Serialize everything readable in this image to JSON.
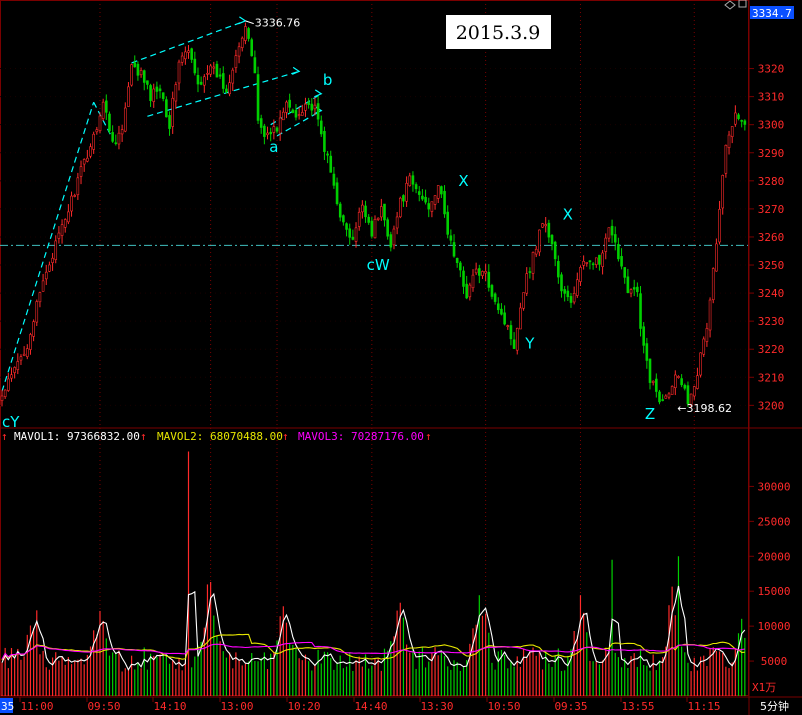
{
  "header": {
    "date_label": "2015.3.9",
    "current_price": "3334.7",
    "top_icons": [
      "diamond-icon",
      "window-icon"
    ]
  },
  "colors": {
    "up": "#ff2a2a",
    "down": "#00d000",
    "mavol1": "#ffffff",
    "mavol2": "#e6e600",
    "mavol3": "#ff00ff",
    "grid": "#7a0000",
    "annotation": "#00ffff",
    "guide": "#40c0c0"
  },
  "chart_data": [
    {
      "type": "candlestick",
      "title": "",
      "interval_label": "5分钟",
      "ylim": [
        3193,
        3343
      ],
      "y_ticks": [
        3200,
        3210,
        3220,
        3230,
        3240,
        3250,
        3260,
        3270,
        3280,
        3290,
        3300,
        3310,
        3320
      ],
      "reference_line": 3257,
      "high_label": "3336.76",
      "low_label": "3198.62",
      "wave_labels": [
        "cY",
        "a",
        "b",
        "cW",
        "X",
        "Y",
        "X",
        "Z"
      ],
      "close_path": [
        [
          0,
          3203
        ],
        [
          8,
          3222
        ],
        [
          14,
          3248
        ],
        [
          19,
          3263
        ],
        [
          24,
          3280
        ],
        [
          29,
          3296
        ],
        [
          32,
          3308
        ],
        [
          35,
          3294
        ],
        [
          38,
          3298
        ],
        [
          41,
          3320
        ],
        [
          44,
          3318
        ],
        [
          47,
          3310
        ],
        [
          50,
          3314
        ],
        [
          53,
          3300
        ],
        [
          56,
          3323
        ],
        [
          59,
          3326
        ],
        [
          62,
          3314
        ],
        [
          65,
          3320
        ],
        [
          68,
          3318
        ],
        [
          71,
          3312
        ],
        [
          74,
          3326
        ],
        [
          77,
          3333
        ],
        [
          78,
          3331
        ],
        [
          80,
          3319
        ],
        [
          81,
          3301
        ],
        [
          84,
          3296
        ],
        [
          87,
          3299
        ],
        [
          90,
          3307
        ],
        [
          93,
          3303
        ],
        [
          96,
          3308
        ],
        [
          99,
          3305
        ],
        [
          102,
          3292
        ],
        [
          105,
          3278
        ],
        [
          108,
          3264
        ],
        [
          111,
          3258
        ],
        [
          114,
          3272
        ],
        [
          117,
          3262
        ],
        [
          120,
          3270
        ],
        [
          123,
          3258
        ],
        [
          126,
          3272
        ],
        [
          129,
          3280
        ],
        [
          132,
          3275
        ],
        [
          135,
          3271
        ],
        [
          138,
          3279
        ],
        [
          141,
          3262
        ],
        [
          144,
          3250
        ],
        [
          147,
          3240
        ],
        [
          150,
          3248
        ],
        [
          153,
          3246
        ],
        [
          156,
          3238
        ],
        [
          159,
          3230
        ],
        [
          162,
          3222
        ],
        [
          165,
          3242
        ],
        [
          168,
          3253
        ],
        [
          171,
          3266
        ],
        [
          174,
          3258
        ],
        [
          177,
          3240
        ],
        [
          180,
          3237
        ],
        [
          183,
          3248
        ],
        [
          186,
          3253
        ],
        [
          189,
          3250
        ],
        [
          192,
          3262
        ],
        [
          195,
          3254
        ],
        [
          198,
          3242
        ],
        [
          201,
          3240
        ],
        [
          202,
          3226
        ],
        [
          205,
          3210
        ],
        [
          208,
          3202
        ],
        [
          211,
          3206
        ],
        [
          214,
          3212
        ],
        [
          217,
          3202
        ],
        [
          220,
          3212
        ],
        [
          223,
          3228
        ],
        [
          226,
          3258
        ],
        [
          229,
          3292
        ],
        [
          232,
          3306
        ],
        [
          235,
          3300
        ]
      ],
      "n_candles": 236
    },
    {
      "type": "bar",
      "title": "",
      "unit_label": "X1万",
      "ylim": [
        0,
        35500
      ],
      "y_ticks": [
        5000,
        10000,
        15000,
        20000,
        25000,
        30000
      ],
      "mavol_labels": [
        "MAVOL1: 97366832.00",
        "MAVOL2: 68070488.00",
        "MAVOL3: 70287176.00"
      ],
      "volume_peaks": [
        [
          10,
          12000
        ],
        [
          31,
          14000
        ],
        [
          66,
          16500
        ],
        [
          89,
          14000
        ],
        [
          126,
          14500
        ],
        [
          151,
          15500
        ],
        [
          183,
          14000
        ],
        [
          212,
          15000
        ],
        [
          235,
          11000
        ]
      ],
      "volume_spikes": [
        [
          59,
          35000
        ],
        [
          193,
          19500
        ],
        [
          214,
          20000
        ]
      ],
      "mavol2_level": 8500,
      "mavol3_level": 7200
    }
  ],
  "x_axis": {
    "labels": [
      "11:00",
      "09:50",
      "14:10",
      "13:00",
      "10:20",
      "14:40",
      "13:30",
      "10:50",
      "09:35",
      "13:55",
      "11:15"
    ],
    "left_stub": "35"
  }
}
